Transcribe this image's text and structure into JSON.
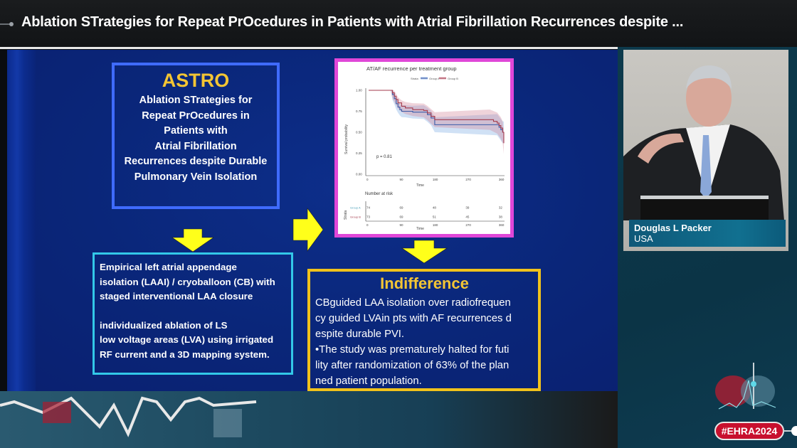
{
  "header": {
    "title": "Ablation STrategies for Repeat PrOcedures in Patients with Atrial Fibrillation Recurrences despite ..."
  },
  "slide": {
    "astro_box": {
      "heading": "ASTRO",
      "lines": [
        "Ablation STrategies for",
        "Repeat PrOcedures in",
        "Patients with",
        "Atrial Fibrillation",
        "Recurrences despite Durable",
        "Pulmonary Vein Isolation"
      ]
    },
    "interventions_box": {
      "para1": [
        "Empirical left atrial appendage",
        "isolation (LAAI) / cryoballoon (CB) with",
        "staged interventional LAA closure"
      ],
      "para2": [
        "individualized ablation of LS",
        "low voltage areas (LVA) using irrigated",
        "RF current and a 3D mapping system."
      ]
    },
    "result_box": {
      "heading": "Indifference",
      "lines": [
        "CBguided LAA isolation over radiofrequen",
        "cy guided LVAin pts with AF recurrences d",
        "espite durable PVI.",
        "•The study was prematurely halted for futi",
        "lity after randomization of 63% of the plan",
        "ned patient population."
      ]
    },
    "colors": {
      "slide_bg": "#0a2679",
      "accent_yellow": "#f3c534",
      "astro_border": "#3f6bff",
      "interventions_border": "#33c8e8",
      "result_border": "#f1c21b",
      "chart_border": "#e047d8"
    }
  },
  "chart_data": {
    "type": "line",
    "title": "AT/AF recurrence per treatment group",
    "xlabel": "Time",
    "ylabel": "Survival probability",
    "xlim": [
      0,
      370
    ],
    "ylim": [
      0,
      1
    ],
    "x_ticks": [
      0,
      90,
      180,
      270,
      360
    ],
    "y_ticks": [
      "0.00",
      "0.25",
      "0.50",
      "0.75",
      "1.00"
    ],
    "legend": {
      "title": "Strata",
      "entries": [
        "Group A",
        "Group B"
      ],
      "position": "top"
    },
    "annotation": "p = 0.81",
    "series": [
      {
        "name": "Group A",
        "color": "#3a5ba8",
        "x": [
          0,
          60,
          65,
          70,
          75,
          80,
          85,
          90,
          100,
          120,
          150,
          160,
          170,
          180,
          350,
          355,
          360,
          365,
          368
        ],
        "y": [
          1.0,
          1.0,
          0.95,
          0.9,
          0.84,
          0.8,
          0.77,
          0.75,
          0.75,
          0.74,
          0.74,
          0.71,
          0.67,
          0.59,
          0.59,
          0.56,
          0.53,
          0.5,
          0.5
        ]
      },
      {
        "name": "Group B",
        "color": "#a33a4c",
        "x": [
          0,
          60,
          65,
          70,
          75,
          80,
          90,
          100,
          120,
          150,
          160,
          170,
          180,
          330,
          340,
          350,
          355,
          360,
          365,
          368
        ],
        "y": [
          1.0,
          1.0,
          0.97,
          0.93,
          0.89,
          0.85,
          0.81,
          0.79,
          0.77,
          0.76,
          0.73,
          0.69,
          0.65,
          0.65,
          0.63,
          0.61,
          0.58,
          0.55,
          0.5,
          0.37
        ]
      }
    ],
    "risk_table": {
      "title": "Number at risk",
      "strata_label": "Strata",
      "time_points": [
        0,
        90,
        180,
        270,
        360
      ],
      "rows": [
        {
          "name": "Group A",
          "values": [
            74,
            69,
            48,
            39,
            32
          ]
        },
        {
          "name": "Group B",
          "values": [
            73,
            69,
            51,
            45,
            38
          ]
        }
      ],
      "xlabel": "Time"
    }
  },
  "speaker": {
    "name": "Douglas L Packer",
    "country": "USA"
  },
  "branding": {
    "hashtag": "#EHRA2024",
    "hashtag_color": "#c8102e"
  }
}
